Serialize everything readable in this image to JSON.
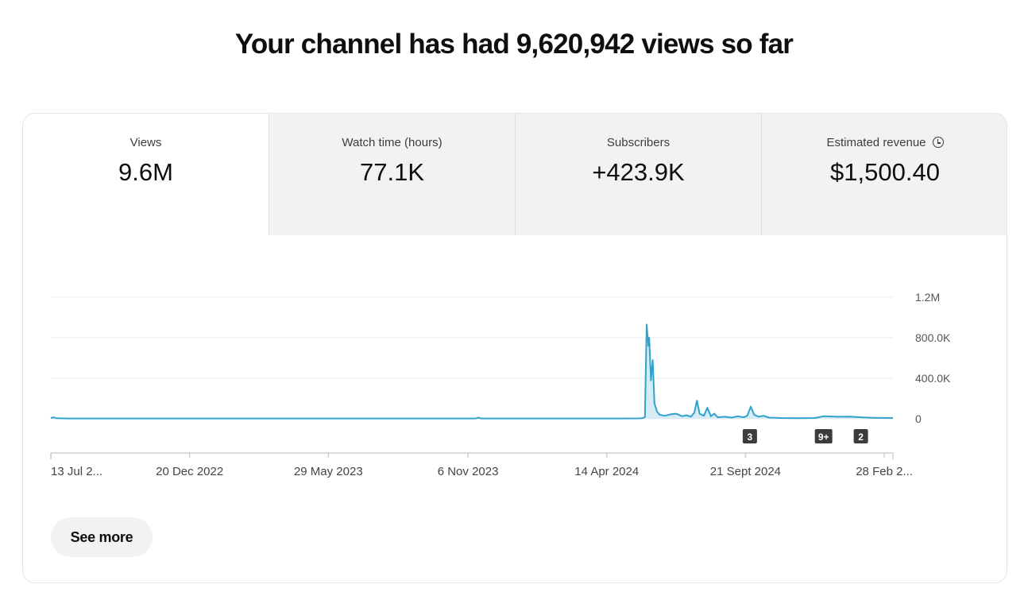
{
  "headline": "Your channel has had 9,620,942 views so far",
  "tabs": [
    {
      "label": "Views",
      "value": "9.6M",
      "active": true
    },
    {
      "label": "Watch time (hours)",
      "value": "77.1K",
      "active": false
    },
    {
      "label": "Subscribers",
      "value": "+423.9K",
      "active": false
    },
    {
      "label": "Estimated revenue",
      "value": "$1,500.40",
      "active": false,
      "icon": "clock-icon"
    }
  ],
  "see_more_label": "See more",
  "colors": {
    "series": "#31a2cc",
    "fill": "#d6ecf5"
  },
  "chart_data": {
    "type": "line",
    "title": "",
    "xlabel": "",
    "ylabel": "",
    "x_start": "2022-07-13",
    "x_end": "2025-03-10",
    "ylim": [
      0,
      1200000
    ],
    "y_ticks": [
      {
        "value": 0,
        "label": "0"
      },
      {
        "value": 400000,
        "label": "400.0K"
      },
      {
        "value": 800000,
        "label": "800.0K"
      },
      {
        "value": 1200000,
        "label": "1.2M"
      }
    ],
    "x_tick_labels": [
      {
        "date": "2022-07-13",
        "label": "13 Jul 2...",
        "anchor": "start"
      },
      {
        "date": "2022-12-20",
        "label": "20 Dec 2022",
        "anchor": "middle"
      },
      {
        "date": "2023-05-29",
        "label": "29 May 2023",
        "anchor": "middle"
      },
      {
        "date": "2023-11-06",
        "label": "6 Nov 2023",
        "anchor": "middle"
      },
      {
        "date": "2024-04-14",
        "label": "14 Apr 2024",
        "anchor": "middle"
      },
      {
        "date": "2024-09-21",
        "label": "21 Sept 2024",
        "anchor": "middle"
      },
      {
        "date": "2025-02-28",
        "label": "28 Feb 2...",
        "anchor": "middle"
      }
    ],
    "markers": [
      {
        "date": "2024-09-26",
        "label": "3"
      },
      {
        "date": "2024-12-20",
        "label": "9+"
      },
      {
        "date": "2025-02-01",
        "label": "2"
      }
    ],
    "series": [
      {
        "points": [
          [
            "2022-07-13",
            8000
          ],
          [
            "2022-07-16",
            14000
          ],
          [
            "2022-07-19",
            6000
          ],
          [
            "2022-08-01",
            3000
          ],
          [
            "2023-01-01",
            3000
          ],
          [
            "2023-09-01",
            3000
          ],
          [
            "2023-11-15",
            3000
          ],
          [
            "2023-11-18",
            12000
          ],
          [
            "2023-11-21",
            3000
          ],
          [
            "2024-05-01",
            3000
          ],
          [
            "2024-05-20",
            4000
          ],
          [
            "2024-05-25",
            6000
          ],
          [
            "2024-05-28",
            15000
          ],
          [
            "2024-05-30",
            930000
          ],
          [
            "2024-06-01",
            720000
          ],
          [
            "2024-06-02",
            800000
          ],
          [
            "2024-06-04",
            380000
          ],
          [
            "2024-06-06",
            580000
          ],
          [
            "2024-06-08",
            150000
          ],
          [
            "2024-06-11",
            70000
          ],
          [
            "2024-06-14",
            40000
          ],
          [
            "2024-06-20",
            30000
          ],
          [
            "2024-06-27",
            45000
          ],
          [
            "2024-07-03",
            50000
          ],
          [
            "2024-07-10",
            25000
          ],
          [
            "2024-07-15",
            35000
          ],
          [
            "2024-07-20",
            20000
          ],
          [
            "2024-07-24",
            60000
          ],
          [
            "2024-07-27",
            180000
          ],
          [
            "2024-07-30",
            50000
          ],
          [
            "2024-08-04",
            30000
          ],
          [
            "2024-08-08",
            110000
          ],
          [
            "2024-08-12",
            25000
          ],
          [
            "2024-08-16",
            50000
          ],
          [
            "2024-08-20",
            15000
          ],
          [
            "2024-08-28",
            20000
          ],
          [
            "2024-09-05",
            12000
          ],
          [
            "2024-09-12",
            25000
          ],
          [
            "2024-09-19",
            15000
          ],
          [
            "2024-09-23",
            30000
          ],
          [
            "2024-09-27",
            120000
          ],
          [
            "2024-10-01",
            40000
          ],
          [
            "2024-10-06",
            20000
          ],
          [
            "2024-10-12",
            30000
          ],
          [
            "2024-10-18",
            12000
          ],
          [
            "2024-11-01",
            8000
          ],
          [
            "2024-11-20",
            6000
          ],
          [
            "2024-12-10",
            8000
          ],
          [
            "2024-12-20",
            25000
          ],
          [
            "2025-01-05",
            20000
          ],
          [
            "2025-01-20",
            22000
          ],
          [
            "2025-02-01",
            15000
          ],
          [
            "2025-02-15",
            10000
          ],
          [
            "2025-03-10",
            8000
          ]
        ]
      }
    ]
  }
}
